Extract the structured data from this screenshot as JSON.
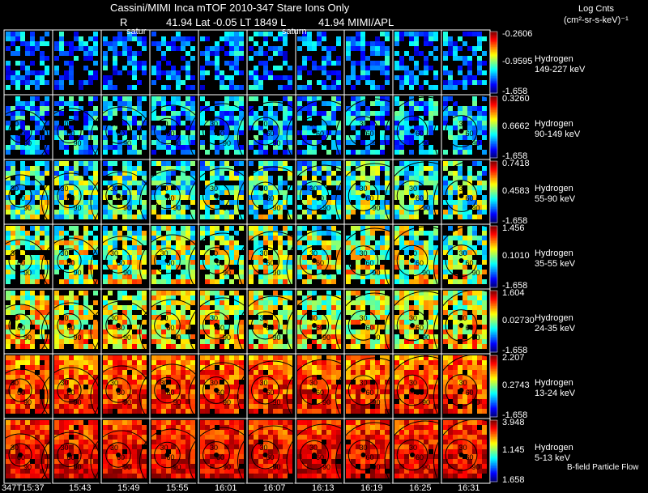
{
  "header": {
    "title": "Cassini/MIMI Inca mTOF  2010-347   Stare   Ions Only",
    "line2_r": "R",
    "line2_coords": "41.94 Lat -0.05 LT 1849 L",
    "line2_right": "41.94  MIMI/APL",
    "satur_1": "satur",
    "satur_2": "saturn",
    "units_title": "Log Cnts",
    "units_sub": "(cm²-sr-s-keV)⁻¹"
  },
  "footer": {
    "flow_label": "B-field Particle Flow"
  },
  "chart_data": {
    "type": "heatmap",
    "title": "Cassini/MIMI Inca mTOF 2010-347 Stare Ions Only",
    "colorbar_units": "Log Cnts (cm2-sr-s-keV)-1",
    "time_labels": [
      "347T15:37",
      "15:43",
      "15:49",
      "15:55",
      "16:01",
      "16:07",
      "16:13",
      "16:19",
      "16:25",
      "16:31"
    ],
    "rows": [
      {
        "species": "Hydrogen",
        "energy": "149-227 keV",
        "cb_max": "-0.2606",
        "cb_mid": "-0.9595",
        "cb_min": "-1.658"
      },
      {
        "species": "Hydrogen",
        "energy": "90-149 keV",
        "cb_max": "0.3260",
        "cb_mid": "0.6662",
        "cb_min": "-1.658"
      },
      {
        "species": "Hydrogen",
        "energy": "55-90 keV",
        "cb_max": "0.7418",
        "cb_mid": "0.4583",
        "cb_min": "-1.658"
      },
      {
        "species": "Hydrogen",
        "energy": "35-55 keV",
        "cb_max": "1.456",
        "cb_mid": "0.1010",
        "cb_min": "-1.658"
      },
      {
        "species": "Hydrogen",
        "energy": "24-35 keV",
        "cb_max": "1.604",
        "cb_mid": "0.02730",
        "cb_min": "-1.658"
      },
      {
        "species": "Hydrogen",
        "energy": "13-24 keV",
        "cb_max": "2.207",
        "cb_mid": "0.2743",
        "cb_min": "-1.658"
      },
      {
        "species": "Hydrogen",
        "energy": "5-13 keV",
        "cb_max": "3.948",
        "cb_mid": "1.145",
        "cb_min": "1.658"
      }
    ],
    "contour_labels": [
      "30",
      "60",
      "90"
    ]
  }
}
